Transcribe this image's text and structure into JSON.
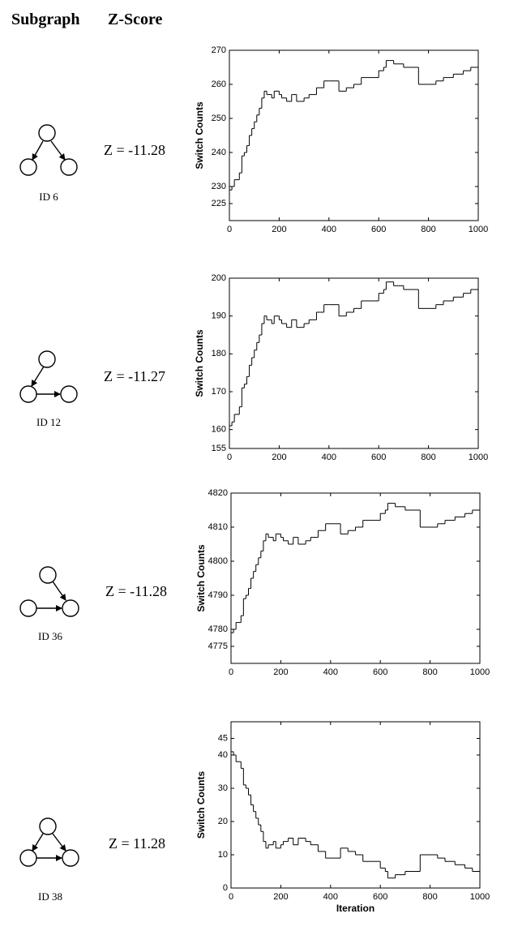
{
  "header": {
    "subgraph": "Subgraph",
    "zscore": "Z-Score"
  },
  "rows": [
    {
      "id": "ID 6",
      "z": "Z = -11.28"
    },
    {
      "id": "ID 12",
      "z": "Z = -11.27"
    },
    {
      "id": "ID 36",
      "z": "Z = -11.28"
    },
    {
      "id": "ID 38",
      "z": "Z = 11.28"
    }
  ],
  "chart_data": [
    {
      "type": "line",
      "ylabel": "Switch Counts",
      "color": "#000000",
      "x": [
        0,
        10,
        20,
        40,
        50,
        60,
        70,
        80,
        90,
        100,
        110,
        120,
        130,
        140,
        150,
        170,
        180,
        200,
        210,
        230,
        250,
        270,
        300,
        320,
        350,
        380,
        400,
        440,
        470,
        500,
        530,
        560,
        600,
        620,
        630,
        660,
        700,
        730,
        760,
        800,
        830,
        860,
        900,
        940,
        970,
        1000
      ],
      "values": [
        229,
        230,
        232,
        234,
        239,
        240,
        242,
        245,
        247,
        249,
        251,
        253,
        256,
        258,
        257,
        256,
        258,
        257,
        256,
        255,
        257,
        255,
        256,
        257,
        259,
        261,
        261,
        258,
        259,
        260,
        262,
        262,
        264,
        265,
        267,
        266,
        265,
        265,
        260,
        260,
        261,
        262,
        263,
        264,
        265,
        266
      ],
      "xlim": [
        0,
        1000
      ],
      "xticks": [
        0,
        200,
        400,
        600,
        800,
        1000
      ],
      "ylim": [
        220,
        270
      ],
      "yticks": [
        225,
        230,
        240,
        250,
        260,
        270
      ]
    },
    {
      "type": "line",
      "ylabel": "Switch Counts",
      "color": "#000000",
      "x": [
        0,
        10,
        20,
        40,
        50,
        60,
        70,
        80,
        90,
        100,
        110,
        120,
        130,
        140,
        150,
        170,
        180,
        200,
        210,
        230,
        250,
        270,
        300,
        320,
        350,
        380,
        400,
        440,
        470,
        500,
        530,
        560,
        600,
        620,
        630,
        660,
        700,
        730,
        760,
        800,
        830,
        860,
        900,
        940,
        970,
        1000
      ],
      "values": [
        161,
        162,
        164,
        166,
        171,
        172,
        174,
        177,
        179,
        181,
        183,
        185,
        188,
        190,
        189,
        188,
        190,
        189,
        188,
        187,
        189,
        187,
        188,
        189,
        191,
        193,
        193,
        190,
        191,
        192,
        194,
        194,
        196,
        197,
        199,
        198,
        197,
        197,
        192,
        192,
        193,
        194,
        195,
        196,
        197,
        198
      ],
      "xlim": [
        0,
        1000
      ],
      "xticks": [
        0,
        200,
        400,
        600,
        800,
        1000
      ],
      "ylim": [
        155,
        200
      ],
      "yticks": [
        155,
        160,
        170,
        180,
        190,
        200
      ]
    },
    {
      "type": "line",
      "ylabel": "Switch Counts",
      "color": "#000000",
      "x": [
        0,
        10,
        20,
        40,
        50,
        60,
        70,
        80,
        90,
        100,
        110,
        120,
        130,
        140,
        150,
        170,
        180,
        200,
        210,
        230,
        250,
        270,
        300,
        320,
        350,
        380,
        400,
        440,
        470,
        500,
        530,
        560,
        600,
        620,
        630,
        660,
        700,
        730,
        760,
        800,
        830,
        860,
        900,
        940,
        970,
        1000
      ],
      "values": [
        4779,
        4780,
        4782,
        4784,
        4789,
        4790,
        4792,
        4795,
        4797,
        4799,
        4801,
        4803,
        4806,
        4808,
        4807,
        4806,
        4808,
        4807,
        4806,
        4805,
        4807,
        4805,
        4806,
        4807,
        4809,
        4811,
        4811,
        4808,
        4809,
        4810,
        4812,
        4812,
        4814,
        4815,
        4817,
        4816,
        4815,
        4815,
        4810,
        4810,
        4811,
        4812,
        4813,
        4814,
        4815,
        4816
      ],
      "xlim": [
        0,
        1000
      ],
      "xticks": [
        0,
        200,
        400,
        600,
        800,
        1000
      ],
      "ylim": [
        4770,
        4820
      ],
      "yticks": [
        4775,
        4780,
        4790,
        4800,
        4810,
        4820
      ]
    },
    {
      "type": "line",
      "ylabel": "Switch Counts",
      "xlabel": "Iteration",
      "color": "#000000",
      "x": [
        0,
        10,
        20,
        40,
        50,
        60,
        70,
        80,
        90,
        100,
        110,
        120,
        130,
        140,
        150,
        170,
        180,
        200,
        210,
        230,
        250,
        270,
        300,
        320,
        350,
        380,
        400,
        440,
        470,
        500,
        530,
        560,
        600,
        620,
        630,
        660,
        700,
        730,
        760,
        800,
        830,
        860,
        900,
        940,
        970,
        1000
      ],
      "values": [
        41,
        40,
        38,
        36,
        31,
        30,
        28,
        25,
        23,
        21,
        19,
        17,
        14,
        12,
        13,
        14,
        12,
        13,
        14,
        15,
        13,
        15,
        14,
        13,
        11,
        9,
        9,
        12,
        11,
        10,
        8,
        8,
        6,
        5,
        3,
        4,
        5,
        5,
        10,
        10,
        9,
        8,
        7,
        6,
        5,
        4
      ],
      "xlim": [
        0,
        1000
      ],
      "xticks": [
        0,
        200,
        400,
        600,
        800,
        1000
      ],
      "ylim": [
        0,
        50
      ],
      "yticks": [
        0,
        10,
        20,
        30,
        40,
        45
      ]
    }
  ]
}
